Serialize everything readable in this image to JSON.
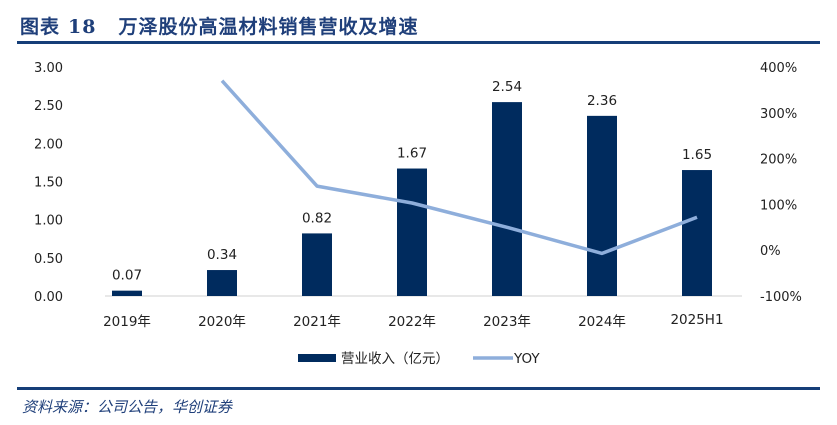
{
  "header": {
    "figure_label": "图表",
    "figure_number": "18",
    "title": "万泽股份高温材料销售营收及增速"
  },
  "footer": {
    "source": "资料来源：公司公告，华创证券"
  },
  "chart_data": {
    "type": "bar",
    "title": "万泽股份高温材料销售营收及增速",
    "categories": [
      "2019年",
      "2020年",
      "2021年",
      "2022年",
      "2023年",
      "2024年",
      "2025H1"
    ],
    "series": [
      {
        "name": "营业收入（亿元）",
        "type": "bar",
        "axis": "left",
        "color": "#002b5e",
        "values": [
          0.07,
          0.34,
          0.82,
          1.67,
          2.54,
          2.36,
          1.65
        ],
        "labels": [
          "0.07",
          "0.34",
          "0.82",
          "1.67",
          "2.54",
          "2.36",
          "1.65"
        ]
      },
      {
        "name": "YOY",
        "type": "line",
        "axis": "right",
        "color": "#8eaedb",
        "values": [
          null,
          370,
          140,
          103,
          50,
          -7,
          72
        ]
      }
    ],
    "left_axis": {
      "ylim": [
        0,
        3
      ],
      "ticks": [
        0,
        0.5,
        1,
        1.5,
        2,
        2.5,
        3
      ],
      "tick_labels": [
        "0.00",
        "0.50",
        "1.00",
        "1.50",
        "2.00",
        "2.50",
        "3.00"
      ]
    },
    "right_axis": {
      "ylim": [
        -100,
        400
      ],
      "ticks": [
        -100,
        0,
        100,
        200,
        300,
        400
      ],
      "tick_labels": [
        "-100%",
        "0%",
        "100%",
        "200%",
        "300%",
        "400%"
      ]
    },
    "grid": false,
    "legend": "bottom",
    "xlabel": "",
    "ylabel": ""
  }
}
